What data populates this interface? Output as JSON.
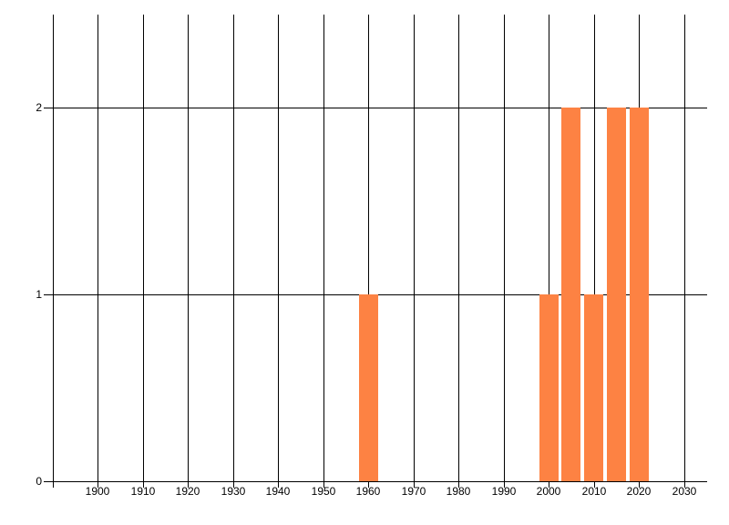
{
  "chart_data": {
    "type": "bar",
    "title": "",
    "xlabel": "",
    "ylabel": "",
    "background_color": "#ffffff",
    "grid": true,
    "legend": false,
    "colors": {
      "bar": "#fd8243",
      "gridline": "#000000",
      "axis": "#000000",
      "text": "#000000"
    },
    "x_axis": {
      "domain": [
        1888.3,
        2035.2
      ],
      "gridline_step_years": 10,
      "gridline_years": [
        1890,
        1900,
        1910,
        1920,
        1930,
        1940,
        1950,
        1960,
        1970,
        1980,
        1990,
        2000,
        2010,
        2020,
        2030
      ],
      "tick_labels": [
        {
          "year": 1900,
          "text": "1900"
        },
        {
          "year": 1910,
          "text": "1910"
        },
        {
          "year": 1920,
          "text": "1920"
        },
        {
          "year": 1930,
          "text": "1930"
        },
        {
          "year": 1940,
          "text": "1940"
        },
        {
          "year": 1950,
          "text": "1950"
        },
        {
          "year": 1960,
          "text": "1960"
        },
        {
          "year": 1970,
          "text": "1970"
        },
        {
          "year": 1980,
          "text": "1980"
        },
        {
          "year": 1990,
          "text": "1990"
        },
        {
          "year": 2000,
          "text": "2000"
        },
        {
          "year": 2010,
          "text": "2010"
        },
        {
          "year": 2020,
          "text": "2020"
        },
        {
          "year": 2030,
          "text": "2030"
        }
      ]
    },
    "y_axis": {
      "min": 0,
      "max": 2.5,
      "tick_labels": [
        {
          "value": 0,
          "text": "0"
        },
        {
          "value": 1,
          "text": "1"
        },
        {
          "value": 2,
          "text": "2"
        }
      ],
      "gridline_values": [
        1,
        2
      ]
    },
    "bar_width_years": 4.2,
    "bars": [
      {
        "year": 1960,
        "value": 1
      },
      {
        "year": 2000,
        "value": 1
      },
      {
        "year": 2005,
        "value": 2
      },
      {
        "year": 2010,
        "value": 1
      },
      {
        "year": 2015,
        "value": 2
      },
      {
        "year": 2020,
        "value": 2
      }
    ]
  }
}
